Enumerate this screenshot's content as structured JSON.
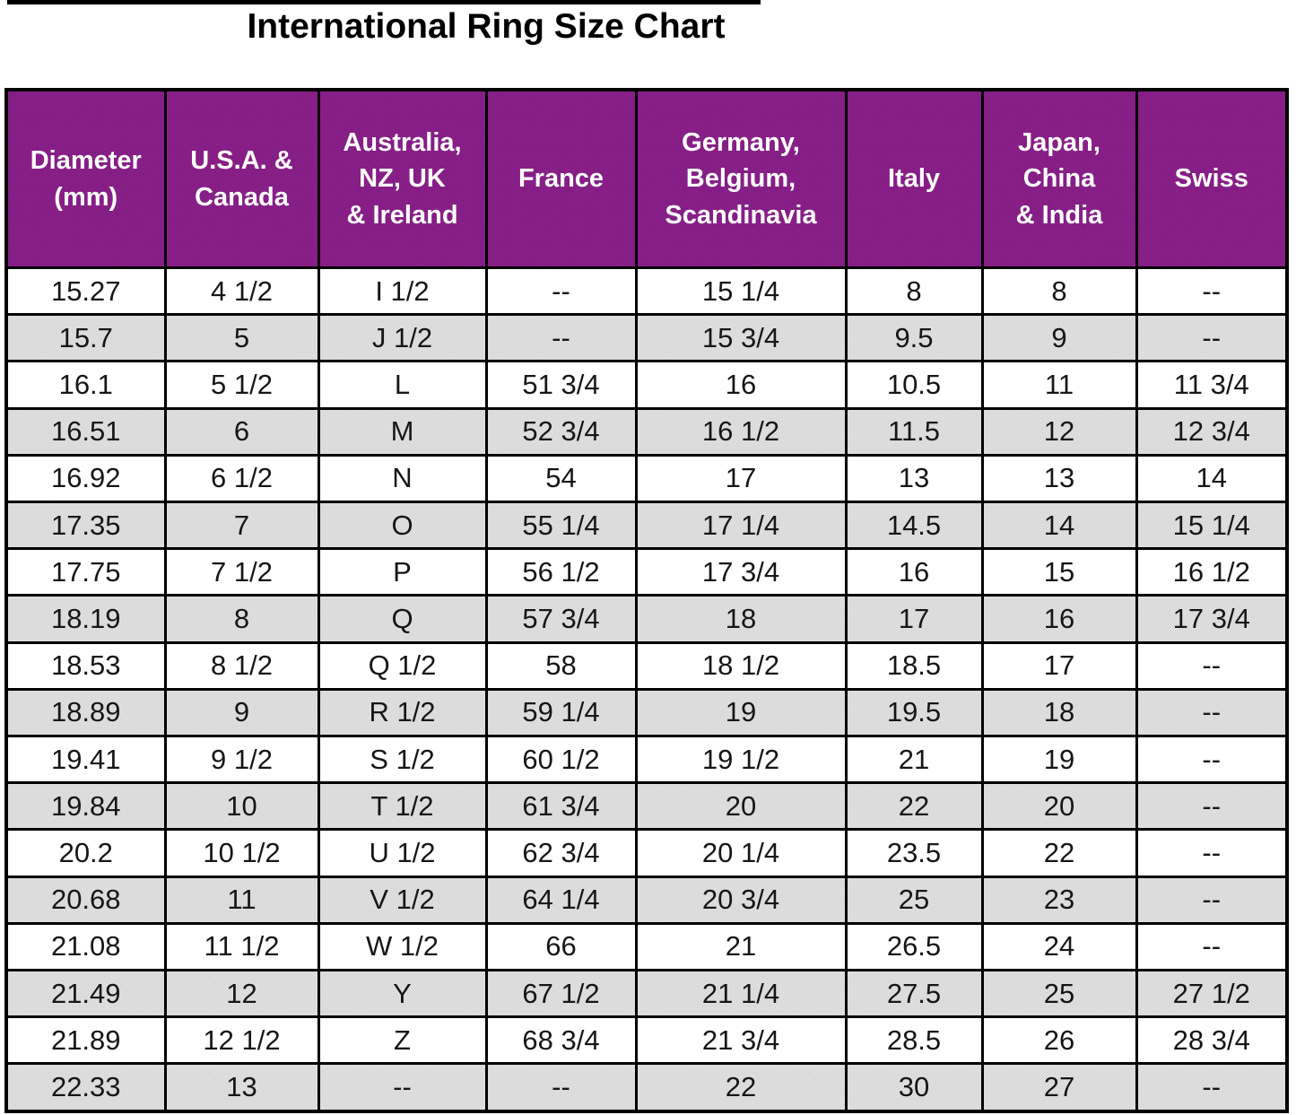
{
  "title": "International Ring Size Chart",
  "colors": {
    "header_bg": "#8c1a8c",
    "header_text": "#ffffff",
    "row_white": "#ffffff",
    "row_gray": "#cfcfcf",
    "border": "#000000",
    "title_text": "#000000"
  },
  "chart_data": {
    "type": "table",
    "title": "International Ring Size Chart",
    "columns": [
      "Diameter\n(mm)",
      "U.S.A. &\nCanada",
      "Australia,\nNZ, UK\n& Ireland",
      "France",
      "Germany,\nBelgium,\nScandinavia",
      "Italy",
      "Japan,\nChina\n& India",
      "Swiss"
    ],
    "rows": [
      [
        "15.27",
        "4 1/2",
        "I 1/2",
        "--",
        "15 1/4",
        "8",
        "8",
        "--"
      ],
      [
        "15.7",
        "5",
        "J 1/2",
        "--",
        "15 3/4",
        "9.5",
        "9",
        "--"
      ],
      [
        "16.1",
        "5 1/2",
        "L",
        "51 3/4",
        "16",
        "10.5",
        "11",
        "11 3/4"
      ],
      [
        "16.51",
        "6",
        "M",
        "52 3/4",
        "16 1/2",
        "11.5",
        "12",
        "12 3/4"
      ],
      [
        "16.92",
        "6 1/2",
        "N",
        "54",
        "17",
        "13",
        "13",
        "14"
      ],
      [
        "17.35",
        "7",
        "O",
        "55 1/4",
        "17 1/4",
        "14.5",
        "14",
        "15 1/4"
      ],
      [
        "17.75",
        "7 1/2",
        "P",
        "56 1/2",
        "17 3/4",
        "16",
        "15",
        "16 1/2"
      ],
      [
        "18.19",
        "8",
        "Q",
        "57 3/4",
        "18",
        "17",
        "16",
        "17 3/4"
      ],
      [
        "18.53",
        "8 1/2",
        "Q 1/2",
        "58",
        "18 1/2",
        "18.5",
        "17",
        "--"
      ],
      [
        "18.89",
        "9",
        "R 1/2",
        "59 1/4",
        "19",
        "19.5",
        "18",
        "--"
      ],
      [
        "19.41",
        "9 1/2",
        "S 1/2",
        "60 1/2",
        "19 1/2",
        "21",
        "19",
        "--"
      ],
      [
        "19.84",
        "10",
        "T 1/2",
        "61 3/4",
        "20",
        "22",
        "20",
        "--"
      ],
      [
        "20.2",
        "10 1/2",
        "U 1/2",
        "62 3/4",
        "20 1/4",
        "23.5",
        "22",
        "--"
      ],
      [
        "20.68",
        "11",
        "V 1/2",
        "64 1/4",
        "20 3/4",
        "25",
        "23",
        "--"
      ],
      [
        "21.08",
        "11 1/2",
        "W 1/2",
        "66",
        "21",
        "26.5",
        "24",
        "--"
      ],
      [
        "21.49",
        "12",
        "Y",
        "67 1/2",
        "21 1/4",
        "27.5",
        "25",
        "27 1/2"
      ],
      [
        "21.89",
        "12 1/2",
        "Z",
        "68 3/4",
        "21 3/4",
        "28.5",
        "26",
        "28 3/4"
      ],
      [
        "22.33",
        "13",
        "--",
        "--",
        "22",
        "30",
        "27",
        "--"
      ]
    ]
  }
}
